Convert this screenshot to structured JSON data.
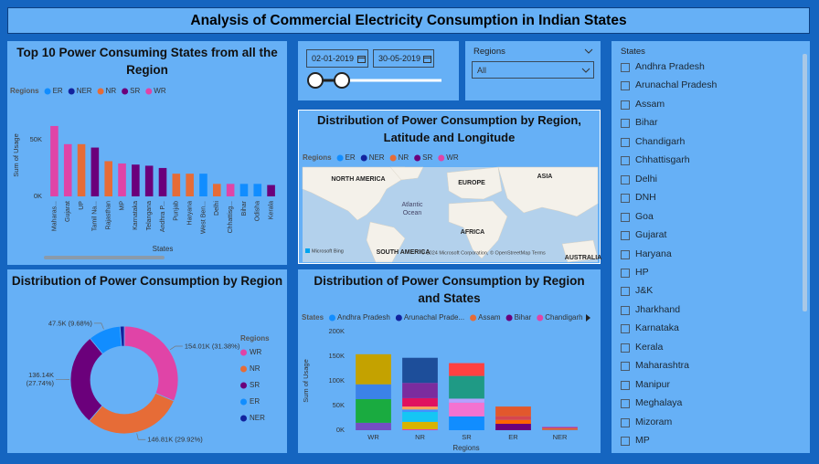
{
  "header": {
    "title": "Analysis of Commercial Electricity Consumption in Indian States"
  },
  "chart_data": [
    {
      "type": "bar",
      "stacked": true,
      "title": "Top 10 Power Consuming States from all the Region",
      "legend_title": "Regions",
      "xlabel": "States",
      "ylabel": "Sum of Usage",
      "grid": false,
      "categories": [
        "Maharas...",
        "Gujarat",
        "UP",
        "Tamil Na...",
        "Rajasthan",
        "MP",
        "Karnataka",
        "Telangana",
        "Andhra P...",
        "Punjab",
        "Haryana",
        "West Ben...",
        "Delhi",
        "Chhattisg...",
        "Bihar",
        "Odisha",
        "Kerala"
      ],
      "series": [
        {
          "name": "ER",
          "color": "#118dff",
          "values": [
            null,
            null,
            null,
            null,
            null,
            null,
            null,
            null,
            null,
            null,
            null,
            20000,
            null,
            null,
            11000,
            11000,
            null
          ]
        },
        {
          "name": "NER",
          "color": "#12239e",
          "values": [
            null,
            null,
            null,
            null,
            null,
            null,
            null,
            null,
            null,
            null,
            null,
            null,
            null,
            null,
            null,
            null,
            null
          ]
        },
        {
          "name": "NR",
          "color": "#e66c37",
          "values": [
            null,
            null,
            46000,
            null,
            31000,
            null,
            null,
            null,
            null,
            20000,
            20000,
            null,
            11000,
            null,
            null,
            null,
            null
          ]
        },
        {
          "name": "SR",
          "color": "#6b007b",
          "values": [
            null,
            null,
            null,
            43000,
            null,
            null,
            28000,
            27000,
            25000,
            null,
            null,
            null,
            null,
            null,
            null,
            null,
            10000
          ]
        },
        {
          "name": "WR",
          "color": "#e044a7",
          "values": [
            62000,
            46000,
            null,
            null,
            null,
            29000,
            null,
            null,
            null,
            null,
            null,
            null,
            null,
            11000,
            null,
            null,
            null
          ]
        }
      ],
      "ylim": [
        0,
        70000
      ],
      "yticks": [
        {
          "value": 0,
          "label": "0K"
        },
        {
          "value": 50000,
          "label": "50K"
        }
      ]
    },
    {
      "type": "pie",
      "title": "Distribution of Power Consumption by Region",
      "legend_title": "Regions",
      "categories": [
        "WR",
        "NR",
        "SR",
        "ER",
        "NER"
      ],
      "values": [
        154010,
        146810,
        136140,
        47500,
        6300
      ],
      "value_labels": [
        "154.01K (31.38%)",
        "146.81K (29.92%)",
        "136.14K (27.74%)",
        "47.5K (9.68%)",
        null
      ],
      "colors": [
        "#e044a7",
        "#e66c37",
        "#6b007b",
        "#118dff",
        "#12239e"
      ]
    },
    {
      "type": "bar",
      "stacked": true,
      "title": "Distribution of Power Consumption by Region and States",
      "legend_title": "States",
      "xlabel": "Regions",
      "ylabel": "Sum of Usage",
      "grid": false,
      "categories": [
        "WR",
        "NR",
        "SR",
        "ER",
        "NER"
      ],
      "series": [
        {
          "name": "Andhra Pradesh",
          "color": "#118dff",
          "values": [
            null,
            null,
            28000,
            null,
            null
          ]
        },
        {
          "name": "Arunachal Prade...",
          "color": "#12239e",
          "values": [
            null,
            null,
            null,
            null,
            500
          ]
        },
        {
          "name": "Assam",
          "color": "#e66c37",
          "values": [
            null,
            null,
            null,
            null,
            4000
          ]
        },
        {
          "name": "Bihar",
          "color": "#6b007b",
          "values": [
            null,
            null,
            null,
            13000,
            null
          ]
        },
        {
          "name": "Chandigarh",
          "color": "#e044a7",
          "values": [
            null,
            2000,
            null,
            null,
            null
          ]
        },
        {
          "name": "Chhattisgarh",
          "color": "#744ec2",
          "values": [
            15000,
            null,
            null,
            null,
            null
          ]
        },
        {
          "name": "Delhi",
          "color": "#d9b300",
          "values": [
            null,
            15000,
            null,
            null,
            null
          ]
        },
        {
          "name": "Gujarat",
          "color": "#1aab40",
          "values": [
            48000,
            null,
            null,
            null,
            null
          ]
        },
        {
          "name": "Haryana",
          "color": "#15c6f4",
          "values": [
            null,
            20000,
            null,
            null,
            null
          ]
        },
        {
          "name": "HP",
          "color": "#4092ff",
          "values": [
            null,
            5000,
            null,
            null,
            null
          ]
        },
        {
          "name": "J&K",
          "color": "#ffa058",
          "values": [
            null,
            6000,
            null,
            null,
            null
          ]
        },
        {
          "name": "Jharkhand",
          "color": "#ff6300",
          "values": [
            null,
            null,
            null,
            8000,
            null
          ]
        },
        {
          "name": "Karnataka",
          "color": "#f472d0",
          "values": [
            null,
            null,
            28000,
            null,
            null
          ]
        },
        {
          "name": "Kerala",
          "color": "#b5a1ff",
          "values": [
            null,
            null,
            8000,
            null,
            null
          ]
        },
        {
          "name": "Maharashtra",
          "color": "#3b82e8",
          "values": [
            30000,
            null,
            null,
            null,
            null
          ]
        },
        {
          "name": "Manipur",
          "color": "#99008a",
          "values": [
            null,
            null,
            null,
            null,
            800
          ]
        },
        {
          "name": "Meghalaya",
          "color": "#ec008c",
          "values": [
            null,
            null,
            null,
            null,
            1000
          ]
        },
        {
          "name": "MP",
          "color": "#c4a200",
          "values": [
            61000,
            null,
            null,
            null,
            null
          ]
        },
        {
          "name": "Odisha",
          "color": "#d64550",
          "values": [
            null,
            null,
            null,
            7000,
            null
          ]
        },
        {
          "name": "Punjab",
          "color": "#e0115f",
          "values": [
            null,
            17000,
            null,
            null,
            null
          ]
        },
        {
          "name": "Rajasthan",
          "color": "#7b2c9e",
          "values": [
            null,
            31000,
            null,
            null,
            null
          ]
        },
        {
          "name": "Tamil Na...",
          "color": "#1f9a85",
          "values": [
            null,
            null,
            46000,
            null,
            null
          ]
        },
        {
          "name": "Telangana",
          "color": "#ff4141",
          "values": [
            null,
            null,
            26000,
            null,
            null
          ]
        },
        {
          "name": "UP",
          "color": "#1d4e9a",
          "values": [
            null,
            50800,
            null,
            null,
            null
          ]
        },
        {
          "name": "West Ben...",
          "color": "#e2582c",
          "values": [
            null,
            null,
            null,
            20000,
            null
          ]
        }
      ],
      "ylim": [
        0,
        200000
      ],
      "yticks": [
        {
          "value": 0,
          "label": "0K"
        },
        {
          "value": 50000,
          "label": "50K"
        },
        {
          "value": 100000,
          "label": "100K"
        },
        {
          "value": 150000,
          "label": "150K"
        },
        {
          "value": 200000,
          "label": "200K"
        }
      ]
    }
  ],
  "map": {
    "title": "Distribution of Power Consumption by Region, Latitude and Longitude",
    "legend_title": "Regions",
    "legend": [
      {
        "name": "ER",
        "color": "#118dff"
      },
      {
        "name": "NER",
        "color": "#12239e"
      },
      {
        "name": "NR",
        "color": "#e66c37"
      },
      {
        "name": "SR",
        "color": "#6b007b"
      },
      {
        "name": "WR",
        "color": "#e044a7"
      }
    ],
    "labels": [
      "NORTH AMERICA",
      "EUROPE",
      "ASIA",
      "Atlantic",
      "Ocean",
      "AFRICA",
      "SOUTH AMERICA",
      "AUSTRALIA"
    ],
    "provider": "Microsoft Bing",
    "credit": "© 2024 Microsoft Corporation, © OpenStreetMap Terms"
  },
  "date_slicer": {
    "start": "02-01-2019",
    "end": "30-05-2019"
  },
  "region_slicer": {
    "title": "Regions",
    "value": "All"
  },
  "state_slicer": {
    "title": "States",
    "items": [
      "Andhra Pradesh",
      "Arunachal Pradesh",
      "Assam",
      "Bihar",
      "Chandigarh",
      "Chhattisgarh",
      "Delhi",
      "DNH",
      "Goa",
      "Gujarat",
      "Haryana",
      "HP",
      "J&K",
      "Jharkhand",
      "Karnataka",
      "Kerala",
      "Maharashtra",
      "Manipur",
      "Meghalaya",
      "Mizoram",
      "MP"
    ]
  }
}
